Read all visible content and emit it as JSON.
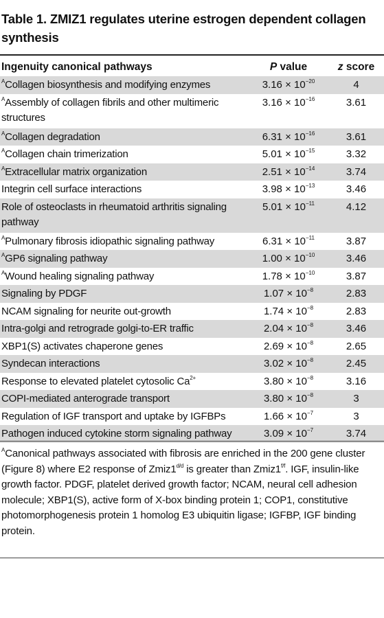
{
  "title": "Table 1. ZMIZ1 regulates uterine estrogen dependent collagen synthesis",
  "columns": {
    "pathway": "Ingenuity canonical pathways",
    "p_italic": "P",
    "p_rest": " value",
    "z_italic": "z",
    "z_rest": " score"
  },
  "times": "×",
  "rows": [
    {
      "mark": "A",
      "pathway": "Collagen biosynthesis and modifying enzymes",
      "mant": "3.16",
      "exp": "−20",
      "z": "4"
    },
    {
      "mark": "A",
      "pathway": "Assembly of collagen fibrils and other multimeric structures",
      "mant": "3.16",
      "exp": "−16",
      "z": "3.61"
    },
    {
      "mark": "A",
      "pathway": "Collagen degradation",
      "mant": "6.31",
      "exp": "−16",
      "z": "3.61"
    },
    {
      "mark": "A",
      "pathway": "Collagen chain trimerization",
      "mant": "5.01",
      "exp": "−15",
      "z": "3.32"
    },
    {
      "mark": "A",
      "pathway": "Extracellular matrix organization",
      "mant": "2.51",
      "exp": "−14",
      "z": "3.74"
    },
    {
      "mark": "",
      "pathway": "Integrin cell surface interactions",
      "mant": "3.98",
      "exp": "−13",
      "z": "3.46"
    },
    {
      "mark": "",
      "pathway": "Role of osteoclasts in rheumatoid arthritis signaling pathway",
      "mant": "5.01",
      "exp": "−11",
      "z": "4.12"
    },
    {
      "mark": "A",
      "pathway": "Pulmonary fibrosis idiopathic signaling pathway",
      "mant": "6.31",
      "exp": "−11",
      "z": "3.87"
    },
    {
      "mark": "A",
      "pathway": "GP6 signaling pathway",
      "mant": "1.00",
      "exp": "−10",
      "z": "3.46"
    },
    {
      "mark": "A",
      "pathway": "Wound healing signaling pathway",
      "mant": "1.78",
      "exp": "−10",
      "z": "3.87"
    },
    {
      "mark": "",
      "pathway": "Signaling by PDGF",
      "mant": "1.07",
      "exp": "−8",
      "z": "2.83"
    },
    {
      "mark": "",
      "pathway": "NCAM signaling for neurite out-growth",
      "mant": "1.74",
      "exp": "−8",
      "z": "2.83"
    },
    {
      "mark": "",
      "pathway": "Intra-golgi and retrograde golgi-to-ER traffic",
      "mant": "2.04",
      "exp": "−8",
      "z": "3.46"
    },
    {
      "mark": "",
      "pathway": "XBP1(S) activates chaperone genes",
      "mant": "2.69",
      "exp": "−8",
      "z": "2.65"
    },
    {
      "mark": "",
      "pathway": "Syndecan interactions",
      "mant": "3.02",
      "exp": "−8",
      "z": "2.45"
    },
    {
      "mark": "",
      "pathway": "Response to elevated platelet cytosolic Ca",
      "sup": "2+",
      "mant": "3.80",
      "exp": "−8",
      "z": "3.16"
    },
    {
      "mark": "",
      "pathway": "COPI-mediated anterograde transport",
      "mant": "3.80",
      "exp": "−8",
      "z": "3"
    },
    {
      "mark": "",
      "pathway": "Regulation of IGF transport and uptake by IGFBPs",
      "mant": "1.66",
      "exp": "−7",
      "z": "3"
    },
    {
      "mark": "",
      "pathway": "Pathogen induced cytokine storm signaling pathway",
      "mant": "3.09",
      "exp": "−7",
      "z": "3.74"
    }
  ],
  "footnote": {
    "mark": "A",
    "text1": "Canonical pathways associated with fibrosis are enriched in the 200 gene cluster (Figure 8) where E2 response of Zmiz1",
    "sup1": "d/d",
    "text2": " is greater than Zmiz1",
    "sup2": "f/f",
    "text3": ". IGF, insulin-like growth factor. PDGF, platelet derived growth factor; NCAM, neural cell adhesion molecule; XBP1(S), active form of X-box binding protein 1; COP1, constitutive photomorphogenesis protein 1 homolog E3 ubiquitin ligase; IGFBP, IGF binding protein."
  }
}
